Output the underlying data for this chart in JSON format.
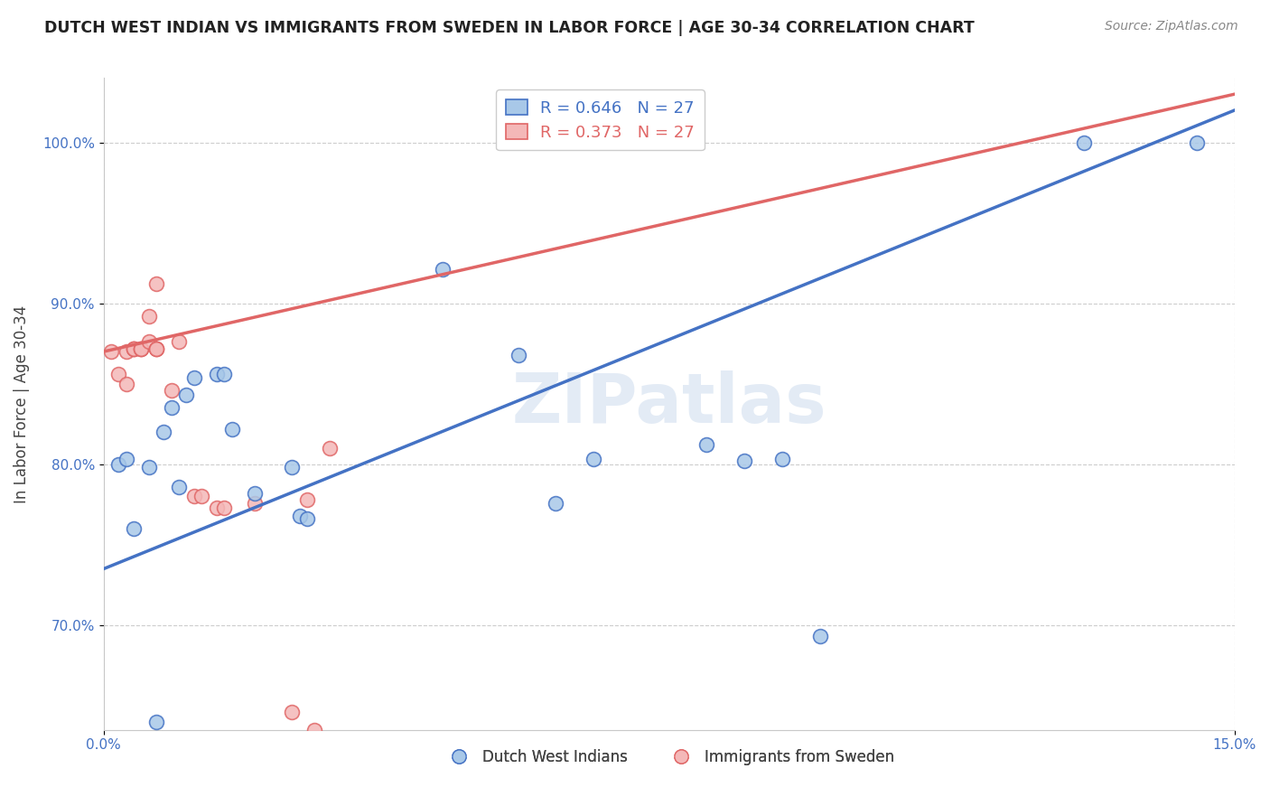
{
  "title": "DUTCH WEST INDIAN VS IMMIGRANTS FROM SWEDEN IN LABOR FORCE | AGE 30-34 CORRELATION CHART",
  "source": "Source: ZipAtlas.com",
  "ylabel": "In Labor Force | Age 30-34",
  "y_ticks": [
    0.7,
    0.8,
    0.9,
    1.0
  ],
  "x_min": 0.0,
  "x_max": 0.15,
  "y_min": 0.635,
  "y_max": 1.04,
  "legend_blue_label": "Dutch West Indians",
  "legend_pink_label": "Immigrants from Sweden",
  "R_blue": 0.646,
  "N_blue": 27,
  "R_pink": 0.373,
  "N_pink": 27,
  "blue_color": "#a8c8e8",
  "pink_color": "#f4b8b8",
  "blue_line_color": "#4472c4",
  "pink_line_color": "#e06666",
  "blue_line": [
    [
      0.0,
      0.735
    ],
    [
      0.15,
      1.02
    ]
  ],
  "pink_line": [
    [
      0.0,
      0.87
    ],
    [
      0.15,
      1.03
    ]
  ],
  "blue_scatter": [
    [
      0.002,
      0.8
    ],
    [
      0.003,
      0.803
    ],
    [
      0.004,
      0.76
    ],
    [
      0.006,
      0.798
    ],
    [
      0.007,
      0.64
    ],
    [
      0.008,
      0.82
    ],
    [
      0.009,
      0.835
    ],
    [
      0.01,
      0.786
    ],
    [
      0.011,
      0.843
    ],
    [
      0.012,
      0.854
    ],
    [
      0.015,
      0.856
    ],
    [
      0.016,
      0.856
    ],
    [
      0.017,
      0.822
    ],
    [
      0.02,
      0.782
    ],
    [
      0.025,
      0.798
    ],
    [
      0.026,
      0.768
    ],
    [
      0.027,
      0.766
    ],
    [
      0.045,
      0.921
    ],
    [
      0.055,
      0.868
    ],
    [
      0.06,
      0.776
    ],
    [
      0.065,
      0.803
    ],
    [
      0.08,
      0.812
    ],
    [
      0.085,
      0.802
    ],
    [
      0.09,
      0.803
    ],
    [
      0.095,
      0.693
    ],
    [
      0.13,
      1.0
    ],
    [
      0.145,
      1.0
    ]
  ],
  "pink_scatter": [
    [
      0.001,
      0.87
    ],
    [
      0.002,
      0.856
    ],
    [
      0.003,
      0.87
    ],
    [
      0.003,
      0.85
    ],
    [
      0.004,
      0.872
    ],
    [
      0.004,
      0.872
    ],
    [
      0.004,
      0.872
    ],
    [
      0.005,
      0.872
    ],
    [
      0.005,
      0.872
    ],
    [
      0.005,
      0.872
    ],
    [
      0.006,
      0.876
    ],
    [
      0.006,
      0.892
    ],
    [
      0.007,
      0.912
    ],
    [
      0.007,
      0.872
    ],
    [
      0.007,
      0.872
    ],
    [
      0.007,
      0.872
    ],
    [
      0.009,
      0.846
    ],
    [
      0.01,
      0.876
    ],
    [
      0.012,
      0.78
    ],
    [
      0.013,
      0.78
    ],
    [
      0.015,
      0.773
    ],
    [
      0.016,
      0.773
    ],
    [
      0.02,
      0.776
    ],
    [
      0.025,
      0.646
    ],
    [
      0.027,
      0.778
    ],
    [
      0.028,
      0.635
    ],
    [
      0.03,
      0.81
    ]
  ],
  "watermark": "ZIPatlas",
  "background_color": "#ffffff",
  "grid_color": "#c8c8c8"
}
